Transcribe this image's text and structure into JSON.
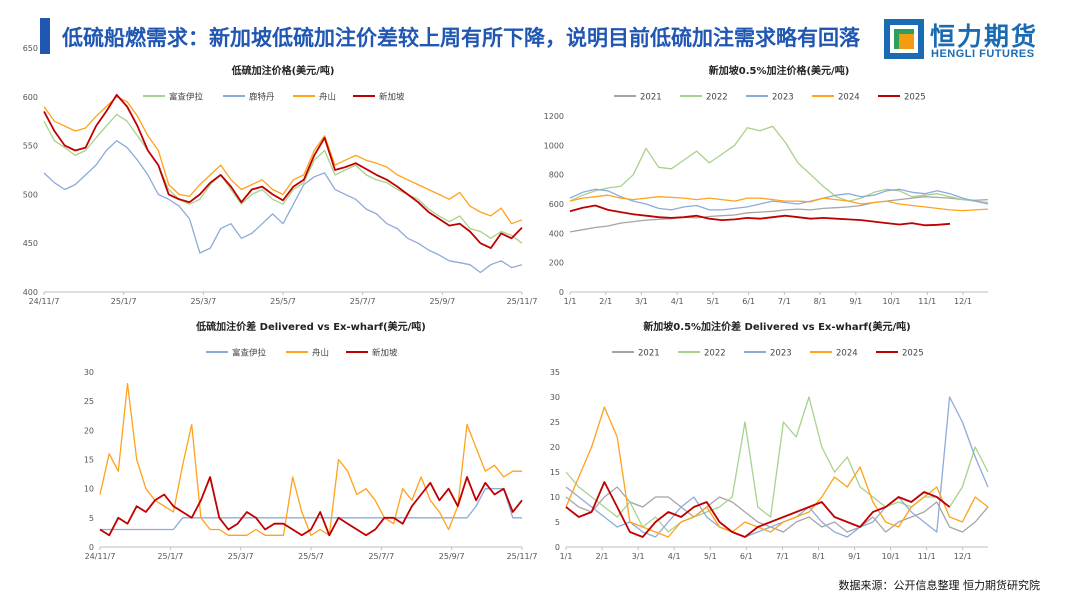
{
  "header": {
    "title": "低硫船燃需求：新加坡低硫加注价差较上周有所下降，说明目前低硫加注需求略有回落"
  },
  "logo": {
    "name_cn": "恒力期货",
    "name_en": "HENGLI FUTURES"
  },
  "footer": {
    "source": "数据来源：公开信息整理  恒力期货研究院"
  },
  "colors": {
    "title": "#1f57b3",
    "brand": "#1b6bb3"
  },
  "chart_data": [
    {
      "id": "c1",
      "type": "line",
      "title": "低硫加注价格(美元/吨)",
      "x_labels": [
        "24/11/7",
        "25/1/7",
        "25/3/7",
        "25/5/7",
        "25/7/7",
        "25/9/7",
        "25/11/7"
      ],
      "ylim": [
        400,
        650
      ],
      "yticks": [
        400,
        450,
        500,
        550,
        600,
        650
      ],
      "xlabel": "",
      "ylabel": "",
      "series": [
        {
          "name": "富查伊拉",
          "color": "#a9d18e",
          "width": 1.3,
          "values": [
            575,
            555,
            548,
            540,
            545,
            558,
            570,
            582,
            575,
            560,
            545,
            530,
            505,
            495,
            490,
            495,
            510,
            520,
            505,
            490,
            500,
            505,
            495,
            490,
            505,
            512,
            535,
            545,
            520,
            525,
            530,
            520,
            515,
            512,
            505,
            500,
            495,
            485,
            478,
            472,
            478,
            465,
            462,
            455,
            462,
            458,
            450
          ]
        },
        {
          "name": "鹿特丹",
          "color": "#8eaadb",
          "width": 1.3,
          "values": [
            522,
            512,
            505,
            510,
            520,
            530,
            545,
            555,
            548,
            535,
            520,
            500,
            495,
            488,
            475,
            440,
            445,
            465,
            470,
            455,
            460,
            470,
            480,
            470,
            490,
            510,
            518,
            522,
            505,
            500,
            495,
            485,
            480,
            470,
            465,
            455,
            450,
            443,
            438,
            432,
            430,
            428,
            420,
            428,
            432,
            425,
            428
          ]
        },
        {
          "name": "舟山",
          "color": "#ffa21c",
          "width": 1.3,
          "values": [
            590,
            575,
            570,
            565,
            568,
            580,
            590,
            600,
            595,
            580,
            560,
            545,
            510,
            500,
            498,
            510,
            520,
            530,
            515,
            505,
            510,
            515,
            505,
            500,
            515,
            520,
            545,
            560,
            530,
            535,
            540,
            535,
            532,
            528,
            520,
            515,
            510,
            505,
            500,
            495,
            502,
            488,
            482,
            478,
            486,
            470,
            474
          ]
        },
        {
          "name": "新加坡",
          "color": "#c00000",
          "width": 1.8,
          "values": [
            585,
            565,
            550,
            545,
            548,
            570,
            585,
            602,
            590,
            570,
            545,
            530,
            500,
            495,
            492,
            500,
            512,
            520,
            508,
            492,
            505,
            508,
            500,
            494,
            508,
            515,
            540,
            558,
            525,
            528,
            532,
            526,
            520,
            515,
            508,
            500,
            492,
            482,
            475,
            468,
            470,
            462,
            450,
            445,
            460,
            455,
            466
          ]
        }
      ]
    },
    {
      "id": "c2",
      "type": "line",
      "title": "新加坡0.5%加注价格(美元/吨)",
      "x_labels": [
        "1/1",
        "2/1",
        "3/1",
        "4/1",
        "5/1",
        "6/1",
        "7/1",
        "8/1",
        "9/1",
        "10/1",
        "11/1",
        "12/1"
      ],
      "ylim": [
        0,
        1200
      ],
      "yticks": [
        0,
        200,
        400,
        600,
        800,
        1000,
        1200
      ],
      "xlabel": "",
      "ylabel": "",
      "series": [
        {
          "name": "2021",
          "color": "#a5a5a5",
          "width": 1.3,
          "values": [
            410,
            425,
            440,
            450,
            470,
            480,
            490,
            495,
            500,
            510,
            505,
            515,
            520,
            525,
            540,
            545,
            550,
            560,
            565,
            560,
            570,
            575,
            580,
            590,
            610,
            620,
            630,
            640,
            650,
            645,
            640,
            630,
            625,
            630
          ]
        },
        {
          "name": "2022",
          "color": "#a9d18e",
          "width": 1.3,
          "values": [
            620,
            660,
            690,
            710,
            720,
            800,
            980,
            850,
            840,
            900,
            960,
            880,
            940,
            1000,
            1120,
            1100,
            1130,
            1020,
            880,
            800,
            720,
            650,
            620,
            640,
            680,
            700,
            690,
            650,
            660,
            670,
            650,
            630,
            620,
            610
          ]
        },
        {
          "name": "2023",
          "color": "#8eaadb",
          "width": 1.3,
          "values": [
            640,
            680,
            700,
            690,
            650,
            620,
            600,
            570,
            560,
            580,
            590,
            560,
            560,
            570,
            580,
            600,
            620,
            610,
            600,
            620,
            640,
            660,
            670,
            650,
            660,
            690,
            700,
            680,
            670,
            690,
            670,
            640,
            620,
            600
          ]
        },
        {
          "name": "2024",
          "color": "#ffa21c",
          "width": 1.3,
          "values": [
            620,
            640,
            650,
            660,
            640,
            630,
            640,
            650,
            645,
            640,
            630,
            640,
            630,
            620,
            640,
            640,
            630,
            620,
            620,
            615,
            640,
            630,
            620,
            600,
            610,
            620,
            600,
            590,
            580,
            570,
            560,
            555,
            560,
            565
          ]
        },
        {
          "name": "2025",
          "color": "#c00000",
          "width": 1.8,
          "values": [
            550,
            575,
            590,
            560,
            545,
            530,
            520,
            510,
            505,
            510,
            520,
            500,
            490,
            495,
            505,
            500,
            510,
            520,
            510,
            500,
            505,
            500,
            495,
            490,
            480,
            470,
            460,
            470,
            455,
            458,
            465
          ]
        }
      ]
    },
    {
      "id": "c3",
      "type": "line",
      "title": "低硫加注价差 Delivered vs Ex-wharf(美元/吨)",
      "x_labels": [
        "24/11/7",
        "25/1/7",
        "25/3/7",
        "25/5/7",
        "25/7/7",
        "25/9/7",
        "25/11/7"
      ],
      "ylim": [
        0,
        30
      ],
      "yticks": [
        0,
        5,
        10,
        15,
        20,
        25,
        30
      ],
      "xlabel": "",
      "ylabel": "",
      "series": [
        {
          "name": "富查伊拉",
          "color": "#8eaadb",
          "width": 1.3,
          "values": [
            3,
            3,
            3,
            3,
            3,
            3,
            3,
            3,
            3,
            5,
            5,
            5,
            5,
            5,
            5,
            5,
            5,
            5,
            5,
            5,
            5,
            5,
            5,
            5,
            5,
            5,
            5,
            5,
            5,
            5,
            5,
            5,
            5,
            5,
            5,
            5,
            5,
            5,
            5,
            5,
            5,
            7,
            10,
            10,
            10,
            5,
            5
          ]
        },
        {
          "name": "舟山",
          "color": "#ffa21c",
          "width": 1.3,
          "values": [
            9,
            16,
            13,
            28,
            15,
            10,
            8,
            7,
            6,
            14,
            21,
            5,
            3,
            3,
            2,
            2,
            2,
            3,
            2,
            2,
            2,
            12,
            6,
            2,
            3,
            2,
            15,
            13,
            9,
            10,
            8,
            5,
            4,
            10,
            8,
            12,
            8,
            6,
            3,
            7,
            21,
            17,
            13,
            14,
            12,
            13,
            13
          ]
        },
        {
          "name": "新加坡",
          "color": "#c00000",
          "width": 1.8,
          "values": [
            3,
            2,
            5,
            4,
            7,
            6,
            8,
            9,
            7,
            6,
            5,
            8,
            12,
            5,
            3,
            4,
            6,
            5,
            3,
            4,
            4,
            3,
            2,
            3,
            6,
            2,
            5,
            4,
            3,
            2,
            3,
            5,
            5,
            4,
            7,
            9,
            11,
            8,
            10,
            7,
            12,
            8,
            11,
            9,
            10,
            6,
            8
          ]
        }
      ]
    },
    {
      "id": "c4",
      "type": "line",
      "title": "新加坡0.5%加注价差 Delivered vs Ex-wharf(美元/吨)",
      "x_labels": [
        "1/1",
        "2/1",
        "3/1",
        "4/1",
        "5/1",
        "6/1",
        "7/1",
        "8/1",
        "9/1",
        "10/1",
        "11/1",
        "12/1"
      ],
      "ylim": [
        0,
        35
      ],
      "yticks": [
        0,
        5,
        10,
        15,
        20,
        25,
        30,
        35
      ],
      "xlabel": "",
      "ylabel": "",
      "series": [
        {
          "name": "2021",
          "color": "#a5a5a5",
          "width": 1.3,
          "values": [
            10,
            8,
            7,
            10,
            12,
            9,
            8,
            10,
            10,
            8,
            6,
            8,
            10,
            9,
            7,
            5,
            4,
            3,
            5,
            6,
            4,
            5,
            3,
            4,
            6,
            3,
            5,
            6,
            7,
            9,
            4,
            3,
            5,
            8
          ]
        },
        {
          "name": "2022",
          "color": "#a9d18e",
          "width": 1.3,
          "values": [
            15,
            12,
            10,
            8,
            6,
            9,
            4,
            6,
            3,
            5,
            6,
            7,
            8,
            10,
            25,
            8,
            6,
            25,
            22,
            30,
            20,
            15,
            18,
            12,
            10,
            8,
            9,
            8,
            10,
            10,
            8,
            12,
            20,
            15
          ]
        },
        {
          "name": "2023",
          "color": "#8eaadb",
          "width": 1.3,
          "values": [
            12,
            10,
            8,
            6,
            4,
            5,
            3,
            2,
            5,
            8,
            10,
            6,
            4,
            3,
            2,
            3,
            4,
            5,
            6,
            8,
            5,
            3,
            2,
            4,
            5,
            8,
            10,
            7,
            5,
            3,
            30,
            25,
            18,
            12
          ]
        },
        {
          "name": "2024",
          "color": "#ffa21c",
          "width": 1.3,
          "values": [
            8,
            14,
            20,
            28,
            22,
            5,
            4,
            3,
            2,
            5,
            6,
            8,
            4,
            3,
            5,
            4,
            3,
            5,
            6,
            7,
            10,
            14,
            12,
            16,
            9,
            5,
            4,
            8,
            10,
            12,
            6,
            5,
            10,
            8
          ]
        },
        {
          "name": "2025",
          "color": "#c00000",
          "width": 1.8,
          "values": [
            8,
            6,
            7,
            13,
            8,
            3,
            2,
            5,
            7,
            6,
            8,
            9,
            5,
            3,
            2,
            4,
            5,
            6,
            7,
            8,
            9,
            6,
            5,
            4,
            7,
            8,
            10,
            9,
            11,
            10,
            8
          ]
        }
      ]
    }
  ]
}
